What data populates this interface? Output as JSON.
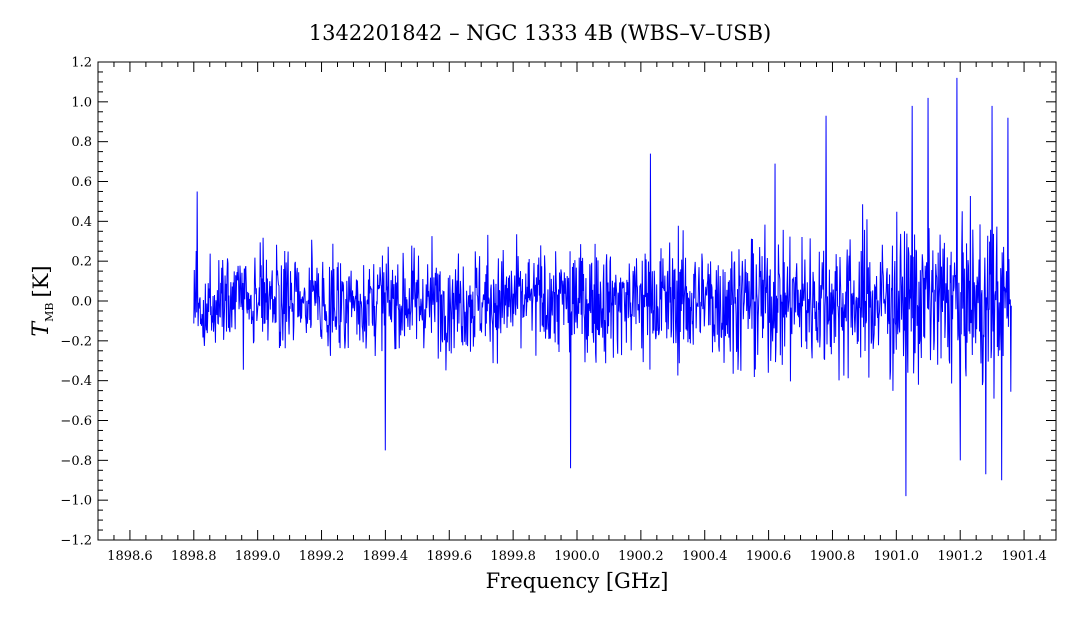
{
  "chart_data": {
    "type": "line",
    "title": "1342201842 – NGC 1333 4B (WBS–V–USB)",
    "xlabel": "Frequency [GHz]",
    "ylabel_main": "T",
    "ylabel_sub": "MB",
    "ylabel_unit": "[K]",
    "xlim": [
      1898.5,
      1901.5
    ],
    "ylim": [
      -1.2,
      1.2
    ],
    "x_ticks": [
      1898.6,
      1898.8,
      1899.0,
      1899.2,
      1899.4,
      1899.6,
      1899.8,
      1900.0,
      1900.2,
      1900.4,
      1900.6,
      1900.8,
      1901.0,
      1901.2,
      1901.4
    ],
    "x_tick_labels": [
      "1898.6",
      "1898.8",
      "1899.0",
      "1899.2",
      "1899.4",
      "1899.6",
      "1899.8",
      "1900.0",
      "1900.2",
      "1900.4",
      "1900.6",
      "1900.8",
      "1901.0",
      "1901.2",
      "1901.4"
    ],
    "y_ticks": [
      -1.2,
      -1.0,
      -0.8,
      -0.6,
      -0.4,
      -0.2,
      0.0,
      0.2,
      0.4,
      0.6,
      0.8,
      1.0,
      1.2
    ],
    "y_tick_labels": [
      "−1.2",
      "−1.0",
      "−0.8",
      "−0.6",
      "−0.4",
      "−0.2",
      "0.0",
      "0.2",
      "0.4",
      "0.6",
      "0.8",
      "1.0",
      "1.2"
    ],
    "line_color": "#0000ff",
    "grid": false,
    "series": [
      {
        "x_start": 1898.8,
        "x_end": 1901.36,
        "noise_envelope": [
          {
            "x": 1898.8,
            "rms": 0.2
          },
          {
            "x": 1899.4,
            "rms": 0.2
          },
          {
            "x": 1900.0,
            "rms": 0.22
          },
          {
            "x": 1900.6,
            "rms": 0.26
          },
          {
            "x": 1901.0,
            "rms": 0.3
          },
          {
            "x": 1901.36,
            "rms": 0.32
          }
        ],
        "notable_peaks": [
          {
            "x": 1898.81,
            "y": 0.55
          },
          {
            "x": 1899.4,
            "y": -0.75
          },
          {
            "x": 1899.98,
            "y": -0.84
          },
          {
            "x": 1900.23,
            "y": 0.74
          },
          {
            "x": 1900.62,
            "y": 0.69
          },
          {
            "x": 1900.78,
            "y": 0.93
          },
          {
            "x": 1901.03,
            "y": -0.98
          },
          {
            "x": 1901.05,
            "y": 0.98
          },
          {
            "x": 1901.1,
            "y": 1.02
          },
          {
            "x": 1901.19,
            "y": 1.12
          },
          {
            "x": 1901.2,
            "y": -0.8
          },
          {
            "x": 1901.28,
            "y": -0.87
          },
          {
            "x": 1901.3,
            "y": 0.98
          },
          {
            "x": 1901.33,
            "y": -0.9
          },
          {
            "x": 1901.35,
            "y": 0.92
          }
        ]
      }
    ]
  }
}
